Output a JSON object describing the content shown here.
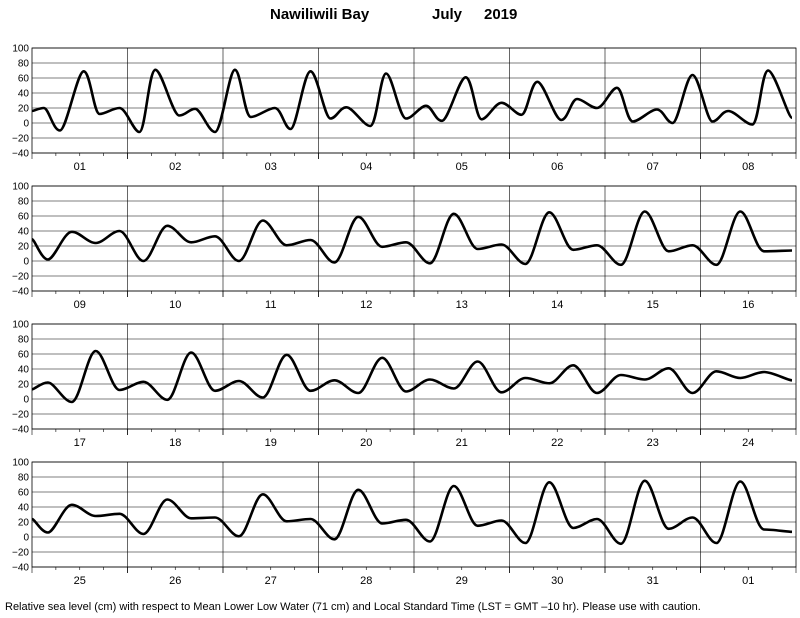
{
  "title": {
    "location": "Nawiliwili Bay",
    "month": "July",
    "year": "2019"
  },
  "footnote": "Relative sea level (cm) with respect to Mean Lower Low Water (71 cm) and Local Standard Time (LST = GMT –10 hr). Please use with caution.",
  "chart_data": {
    "type": "line",
    "ylabel": "",
    "ylim": [
      -40,
      100
    ],
    "yticks": [
      -40,
      -20,
      0,
      20,
      40,
      60,
      80,
      100
    ],
    "ytick_labels": [
      "−40",
      "−20",
      "0",
      "20",
      "40",
      "60",
      "80",
      "100"
    ],
    "grid": "horizontal gridlines every 20 cm, vertical lines at day boundaries",
    "line_color": "#000000",
    "panels": [
      {
        "days": [
          "01",
          "02",
          "03",
          "04",
          "05",
          "06",
          "07",
          "08"
        ],
        "x_hours": [
          0,
          3,
          7,
          13,
          17,
          22,
          27,
          31,
          37,
          41,
          46,
          51,
          55,
          61,
          65,
          70,
          75,
          79,
          85,
          89,
          94,
          99,
          103,
          109,
          113,
          118,
          123,
          127,
          133,
          137,
          142,
          147,
          151,
          157,
          161,
          166,
          171,
          175,
          181,
          185,
          191
        ],
        "y_cm": [
          16,
          20,
          -10,
          69,
          12,
          20,
          -12,
          71,
          10,
          19,
          -12,
          71,
          8,
          20,
          -8,
          69,
          6,
          21,
          -4,
          66,
          6,
          23,
          3,
          61,
          5,
          27,
          11,
          55,
          4,
          32,
          20,
          47,
          2,
          18,
          0,
          64,
          2,
          16,
          -2,
          70,
          7
        ]
      },
      {
        "days": [
          "09",
          "10",
          "11",
          "12",
          "13",
          "14",
          "15",
          "16"
        ],
        "x_hours": [
          0,
          4,
          10,
          16,
          22,
          28,
          34,
          40,
          46,
          52,
          58,
          64,
          70,
          76,
          82,
          88,
          94,
          100,
          106,
          112,
          118,
          124,
          130,
          136,
          142,
          148,
          154,
          160,
          166,
          172,
          178,
          184,
          191
        ],
        "y_cm": [
          29,
          2,
          39,
          24,
          40,
          0,
          47,
          25,
          33,
          0,
          54,
          21,
          28,
          -2,
          59,
          19,
          25,
          -3,
          63,
          16,
          22,
          -4,
          65,
          15,
          21,
          -5,
          66,
          13,
          21,
          -5,
          66,
          13,
          14
        ]
      },
      {
        "days": [
          "17",
          "18",
          "19",
          "20",
          "21",
          "22",
          "23",
          "24"
        ],
        "x_hours": [
          0,
          4,
          10,
          16,
          22,
          28,
          34,
          40,
          46,
          52,
          58,
          64,
          70,
          76,
          82,
          88,
          94,
          100,
          106,
          112,
          118,
          124,
          130,
          136,
          142,
          148,
          154,
          160,
          166,
          172,
          178,
          184,
          191
        ],
        "y_cm": [
          13,
          22,
          -4,
          64,
          12,
          23,
          -1,
          62,
          11,
          24,
          2,
          59,
          11,
          25,
          8,
          55,
          10,
          26,
          14,
          50,
          9,
          28,
          21,
          45,
          8,
          32,
          26,
          41,
          8,
          37,
          28,
          36,
          25
        ]
      },
      {
        "days": [
          "25",
          "26",
          "27",
          "28",
          "29",
          "30",
          "31",
          "01"
        ],
        "x_hours": [
          0,
          4,
          10,
          16,
          22,
          28,
          34,
          40,
          46,
          52,
          58,
          64,
          70,
          76,
          82,
          88,
          94,
          100,
          106,
          112,
          118,
          124,
          130,
          136,
          142,
          148,
          154,
          160,
          166,
          172,
          178,
          184,
          191
        ],
        "y_cm": [
          24,
          6,
          43,
          28,
          31,
          4,
          50,
          25,
          26,
          1,
          57,
          21,
          24,
          -3,
          63,
          18,
          23,
          -6,
          68,
          15,
          22,
          -8,
          73,
          12,
          24,
          -9,
          75,
          11,
          26,
          -8,
          74,
          10,
          7
        ]
      }
    ]
  }
}
